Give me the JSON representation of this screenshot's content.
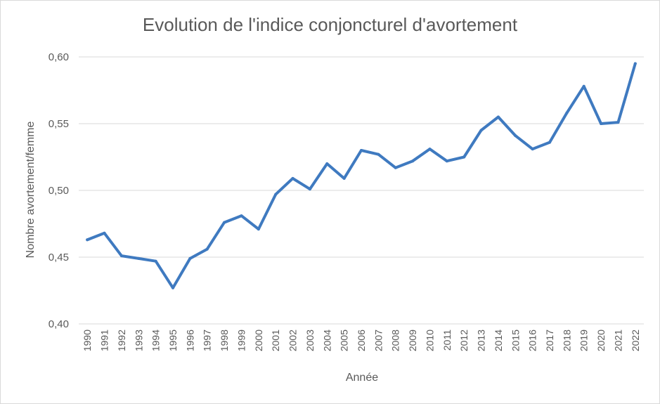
{
  "chart_data": {
    "type": "line",
    "title": "Evolution de l'indice conjoncturel d'avortement",
    "xlabel": "Année",
    "ylabel": "Nombre avortement/femme",
    "ylim": [
      0.4,
      0.6
    ],
    "y_ticks": [
      "0,40",
      "0,45",
      "0,50",
      "0,55",
      "0,60"
    ],
    "grid": "horizontal",
    "legend": "none",
    "x": [
      "1990",
      "1991",
      "1992",
      "1993",
      "1994",
      "1995",
      "1996",
      "1997",
      "1998",
      "1999",
      "2000",
      "2001",
      "2002",
      "2003",
      "2004",
      "2005",
      "2006",
      "2007",
      "2008",
      "2009",
      "2010",
      "2011",
      "2012",
      "2013",
      "2014",
      "2015",
      "2016",
      "2017",
      "2018",
      "2019",
      "2020",
      "2021",
      "2022"
    ],
    "series": [
      {
        "color": "#3f7ac0",
        "values": [
          0.463,
          0.468,
          0.451,
          0.449,
          0.447,
          0.427,
          0.449,
          0.456,
          0.476,
          0.481,
          0.471,
          0.497,
          0.509,
          0.501,
          0.52,
          0.509,
          0.53,
          0.527,
          0.517,
          0.522,
          0.531,
          0.522,
          0.525,
          0.545,
          0.555,
          0.541,
          0.531,
          0.536,
          0.558,
          0.578,
          0.55,
          0.551,
          0.595
        ]
      }
    ]
  }
}
